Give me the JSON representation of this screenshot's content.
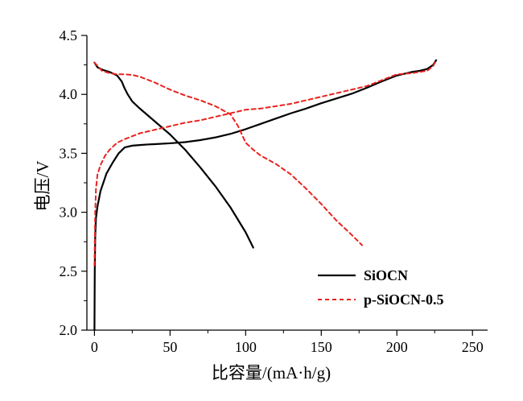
{
  "chart_data": {
    "type": "line",
    "title": "",
    "xlabel": "比容量/(mA·h/g)",
    "ylabel": "电压/V",
    "xlim": [
      -5,
      260
    ],
    "ylim": [
      2.0,
      4.5
    ],
    "x_ticks": [
      0,
      50,
      100,
      150,
      200,
      250
    ],
    "y_ticks": [
      2.0,
      2.5,
      3.0,
      3.5,
      4.0,
      4.5
    ],
    "x_tick_labels": [
      "0",
      "50",
      "100",
      "150",
      "200",
      "250"
    ],
    "y_tick_labels": [
      "2.0",
      "2.5",
      "3.0",
      "3.5",
      "4.0",
      "4.5"
    ],
    "grid": false,
    "legend_position": "bottom-right",
    "series": [
      {
        "name": "SiOCN",
        "color": "#000000",
        "dash": "solid",
        "segments": [
          {
            "x": [
              0,
              0.2,
              0.5,
              1,
              2,
              4,
              8,
              12,
              16,
              20,
              25,
              30,
              35,
              40,
              50,
              60,
              70,
              80,
              90,
              100,
              110,
              120,
              130,
              140,
              150,
              160,
              170,
              180,
              190,
              200,
              210,
              215,
              220,
              224,
              226
            ],
            "y": [
              2.0,
              2.5,
              2.8,
              2.95,
              3.05,
              3.18,
              3.33,
              3.42,
              3.5,
              3.55,
              3.565,
              3.57,
              3.575,
              3.578,
              3.585,
              3.595,
              3.612,
              3.635,
              3.665,
              3.705,
              3.75,
              3.795,
              3.84,
              3.88,
              3.925,
              3.965,
              4.005,
              4.055,
              4.11,
              4.16,
              4.19,
              4.2,
              4.215,
              4.25,
              4.29
            ]
          },
          {
            "x": [
              0,
              2,
              5,
              10,
              15,
              18,
              20,
              22,
              25,
              30,
              40,
              50,
              60,
              70,
              80,
              90,
              100,
              105
            ],
            "y": [
              4.27,
              4.23,
              4.21,
              4.19,
              4.16,
              4.11,
              4.05,
              4.0,
              3.94,
              3.88,
              3.77,
              3.66,
              3.53,
              3.38,
              3.22,
              3.04,
              2.83,
              2.7
            ]
          }
        ]
      },
      {
        "name": "p-SiOCN-0.5",
        "color": "#e8231f",
        "dash": "dashed",
        "segments": [
          {
            "x": [
              0,
              0.5,
              1,
              2,
              4,
              7,
              10,
              15,
              20,
              30,
              40,
              50,
              60,
              70,
              80,
              90,
              100,
              110,
              120,
              130,
              140,
              150,
              160,
              170,
              180,
              190,
              200,
              210,
              215,
              220,
              224,
              226
            ],
            "y": [
              2.55,
              3.0,
              3.2,
              3.32,
              3.4,
              3.48,
              3.53,
              3.59,
              3.62,
              3.67,
              3.7,
              3.73,
              3.76,
              3.78,
              3.81,
              3.84,
              3.87,
              3.88,
              3.9,
              3.92,
              3.95,
              3.98,
              4.01,
              4.04,
              4.07,
              4.12,
              4.17,
              4.18,
              4.19,
              4.2,
              4.24,
              4.29
            ]
          },
          {
            "x": [
              0,
              5,
              10,
              15,
              20,
              25,
              30,
              40,
              50,
              60,
              70,
              80,
              90,
              95,
              100,
              105,
              110,
              120,
              130,
              140,
              150,
              160,
              170,
              177
            ],
            "y": [
              4.27,
              4.2,
              4.18,
              4.17,
              4.17,
              4.165,
              4.15,
              4.1,
              4.04,
              3.99,
              3.95,
              3.9,
              3.83,
              3.73,
              3.59,
              3.53,
              3.48,
              3.41,
              3.32,
              3.2,
              3.07,
              2.93,
              2.81,
              2.72
            ]
          }
        ]
      }
    ]
  }
}
